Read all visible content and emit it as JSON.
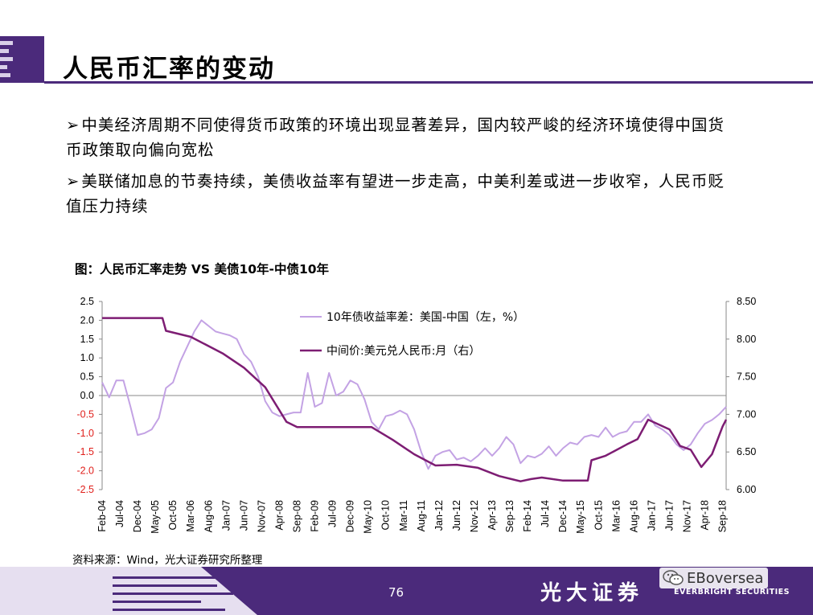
{
  "slide": {
    "title": "人民币汇率的变动",
    "bullets": [
      "中美经济周期不同使得货币政策的环境出现显著差异，国内较严峻的经济环境使得中国货币政策取向偏向宽松",
      "美联储加息的节奏持续，美债收益率有望进一步走高，中美利差或进一步收窄，人民币贬值压力持续"
    ],
    "source": "资料来源：Wind，光大证券研究所整理",
    "page_number": "76",
    "brand_cn": "光大证券",
    "brand_en": "EVERBRIGHT SECURITIES",
    "watermark": "EBoversea",
    "colors": {
      "purple": "#4b2a7b",
      "spread_line": "#c3a2e4",
      "fx_line": "#7d1d73",
      "negative_tick": "#e0201c"
    }
  },
  "chart_data": {
    "type": "line",
    "title": "图：人民币汇率走势 VS 美债10年-中债10年",
    "x_tick_labels": [
      "Feb-04",
      "Jul-04",
      "Dec-04",
      "May-05",
      "Oct-05",
      "Mar-06",
      "Aug-06",
      "Jan-07",
      "Jun-07",
      "Nov-07",
      "Apr-08",
      "Sep-08",
      "Feb-09",
      "Jul-09",
      "Dec-09",
      "May-10",
      "Oct-10",
      "Mar-11",
      "Aug-11",
      "Jan-12",
      "Jun-12",
      "Nov-12",
      "Apr-13",
      "Sep-13",
      "Feb-14",
      "Jul-14",
      "Dec-14",
      "May-15",
      "Oct-15",
      "Mar-16",
      "Aug-16",
      "Jan-17",
      "Jun-17",
      "Nov-17",
      "Apr-18",
      "Sep-18"
    ],
    "x_range": [
      "2004-02",
      "2018-10"
    ],
    "y_left": {
      "ticks": [
        "2.5",
        "2.0",
        "1.5",
        "1.0",
        "0.5",
        "0.0",
        "-0.5",
        "-1.0",
        "-1.5",
        "-2.0",
        "-2.5"
      ],
      "range": [
        -2.5,
        2.5
      ]
    },
    "y_right": {
      "ticks": [
        "8.50",
        "8.00",
        "7.50",
        "7.00",
        "6.50",
        "6.00"
      ],
      "range": [
        6.0,
        8.5
      ]
    },
    "legend_placement": "top-center",
    "series": [
      {
        "name": "10年债收益率差：美国-中国（左，%）",
        "axis": "left",
        "color": "#c3a2e4",
        "points": [
          [
            "2004-02",
            0.35
          ],
          [
            "2004-04",
            -0.05
          ],
          [
            "2004-06",
            0.4
          ],
          [
            "2004-08",
            0.4
          ],
          [
            "2004-10",
            -0.3
          ],
          [
            "2004-12",
            -1.05
          ],
          [
            "2005-02",
            -1.0
          ],
          [
            "2005-04",
            -0.9
          ],
          [
            "2005-06",
            -0.6
          ],
          [
            "2005-08",
            0.2
          ],
          [
            "2005-10",
            0.35
          ],
          [
            "2005-12",
            0.9
          ],
          [
            "2006-02",
            1.3
          ],
          [
            "2006-04",
            1.7
          ],
          [
            "2006-06",
            2.0
          ],
          [
            "2006-08",
            1.85
          ],
          [
            "2006-10",
            1.7
          ],
          [
            "2006-12",
            1.65
          ],
          [
            "2007-02",
            1.6
          ],
          [
            "2007-04",
            1.5
          ],
          [
            "2007-06",
            1.1
          ],
          [
            "2007-08",
            0.9
          ],
          [
            "2007-10",
            0.5
          ],
          [
            "2007-12",
            -0.15
          ],
          [
            "2008-02",
            -0.45
          ],
          [
            "2008-04",
            -0.55
          ],
          [
            "2008-06",
            -0.5
          ],
          [
            "2008-08",
            -0.45
          ],
          [
            "2008-10",
            -0.45
          ],
          [
            "2008-12",
            0.6
          ],
          [
            "2009-02",
            -0.3
          ],
          [
            "2009-04",
            -0.2
          ],
          [
            "2009-06",
            0.6
          ],
          [
            "2009-08",
            0.0
          ],
          [
            "2009-10",
            0.1
          ],
          [
            "2009-12",
            0.4
          ],
          [
            "2010-02",
            0.3
          ],
          [
            "2010-04",
            -0.1
          ],
          [
            "2010-06",
            -0.7
          ],
          [
            "2010-08",
            -0.9
          ],
          [
            "2010-10",
            -0.55
          ],
          [
            "2010-12",
            -0.5
          ],
          [
            "2011-02",
            -0.4
          ],
          [
            "2011-04",
            -0.5
          ],
          [
            "2011-06",
            -0.9
          ],
          [
            "2011-08",
            -1.5
          ],
          [
            "2011-10",
            -1.95
          ],
          [
            "2011-12",
            -1.6
          ],
          [
            "2012-02",
            -1.5
          ],
          [
            "2012-04",
            -1.45
          ],
          [
            "2012-06",
            -1.7
          ],
          [
            "2012-08",
            -1.65
          ],
          [
            "2012-10",
            -1.75
          ],
          [
            "2012-12",
            -1.6
          ],
          [
            "2013-02",
            -1.4
          ],
          [
            "2013-04",
            -1.6
          ],
          [
            "2013-06",
            -1.4
          ],
          [
            "2013-08",
            -1.1
          ],
          [
            "2013-10",
            -1.3
          ],
          [
            "2013-12",
            -1.8
          ],
          [
            "2014-02",
            -1.6
          ],
          [
            "2014-04",
            -1.65
          ],
          [
            "2014-06",
            -1.55
          ],
          [
            "2014-08",
            -1.35
          ],
          [
            "2014-10",
            -1.6
          ],
          [
            "2014-12",
            -1.4
          ],
          [
            "2015-02",
            -1.25
          ],
          [
            "2015-04",
            -1.3
          ],
          [
            "2015-06",
            -1.1
          ],
          [
            "2015-08",
            -1.05
          ],
          [
            "2015-10",
            -1.1
          ],
          [
            "2015-12",
            -0.85
          ],
          [
            "2016-02",
            -1.1
          ],
          [
            "2016-04",
            -1.0
          ],
          [
            "2016-06",
            -0.95
          ],
          [
            "2016-08",
            -0.7
          ],
          [
            "2016-10",
            -0.7
          ],
          [
            "2016-12",
            -0.5
          ],
          [
            "2017-02",
            -0.8
          ],
          [
            "2017-04",
            -0.9
          ],
          [
            "2017-06",
            -1.05
          ],
          [
            "2017-08",
            -1.3
          ],
          [
            "2017-10",
            -1.45
          ],
          [
            "2017-12",
            -1.3
          ],
          [
            "2018-02",
            -1.0
          ],
          [
            "2018-04",
            -0.75
          ],
          [
            "2018-06",
            -0.65
          ],
          [
            "2018-08",
            -0.5
          ],
          [
            "2018-10",
            -0.3
          ]
        ]
      },
      {
        "name": "中间价:美元兑人民币:月（右）",
        "axis": "right",
        "color": "#7d1d73",
        "points": [
          [
            "2004-02",
            8.28
          ],
          [
            "2005-07",
            8.28
          ],
          [
            "2005-08",
            8.11
          ],
          [
            "2006-03",
            8.03
          ],
          [
            "2006-12",
            7.81
          ],
          [
            "2007-06",
            7.62
          ],
          [
            "2007-12",
            7.36
          ],
          [
            "2008-06",
            6.9
          ],
          [
            "2008-09",
            6.83
          ],
          [
            "2010-06",
            6.83
          ],
          [
            "2010-12",
            6.66
          ],
          [
            "2011-06",
            6.47
          ],
          [
            "2011-12",
            6.32
          ],
          [
            "2012-06",
            6.33
          ],
          [
            "2012-12",
            6.29
          ],
          [
            "2013-06",
            6.18
          ],
          [
            "2013-12",
            6.11
          ],
          [
            "2014-03",
            6.14
          ],
          [
            "2014-06",
            6.16
          ],
          [
            "2014-12",
            6.12
          ],
          [
            "2015-07",
            6.12
          ],
          [
            "2015-08",
            6.39
          ],
          [
            "2015-12",
            6.45
          ],
          [
            "2016-06",
            6.6
          ],
          [
            "2016-09",
            6.67
          ],
          [
            "2016-12",
            6.93
          ],
          [
            "2017-06",
            6.8
          ],
          [
            "2017-09",
            6.58
          ],
          [
            "2017-12",
            6.53
          ],
          [
            "2018-03",
            6.3
          ],
          [
            "2018-06",
            6.47
          ],
          [
            "2018-09",
            6.84
          ],
          [
            "2018-10",
            6.93
          ]
        ]
      }
    ]
  }
}
